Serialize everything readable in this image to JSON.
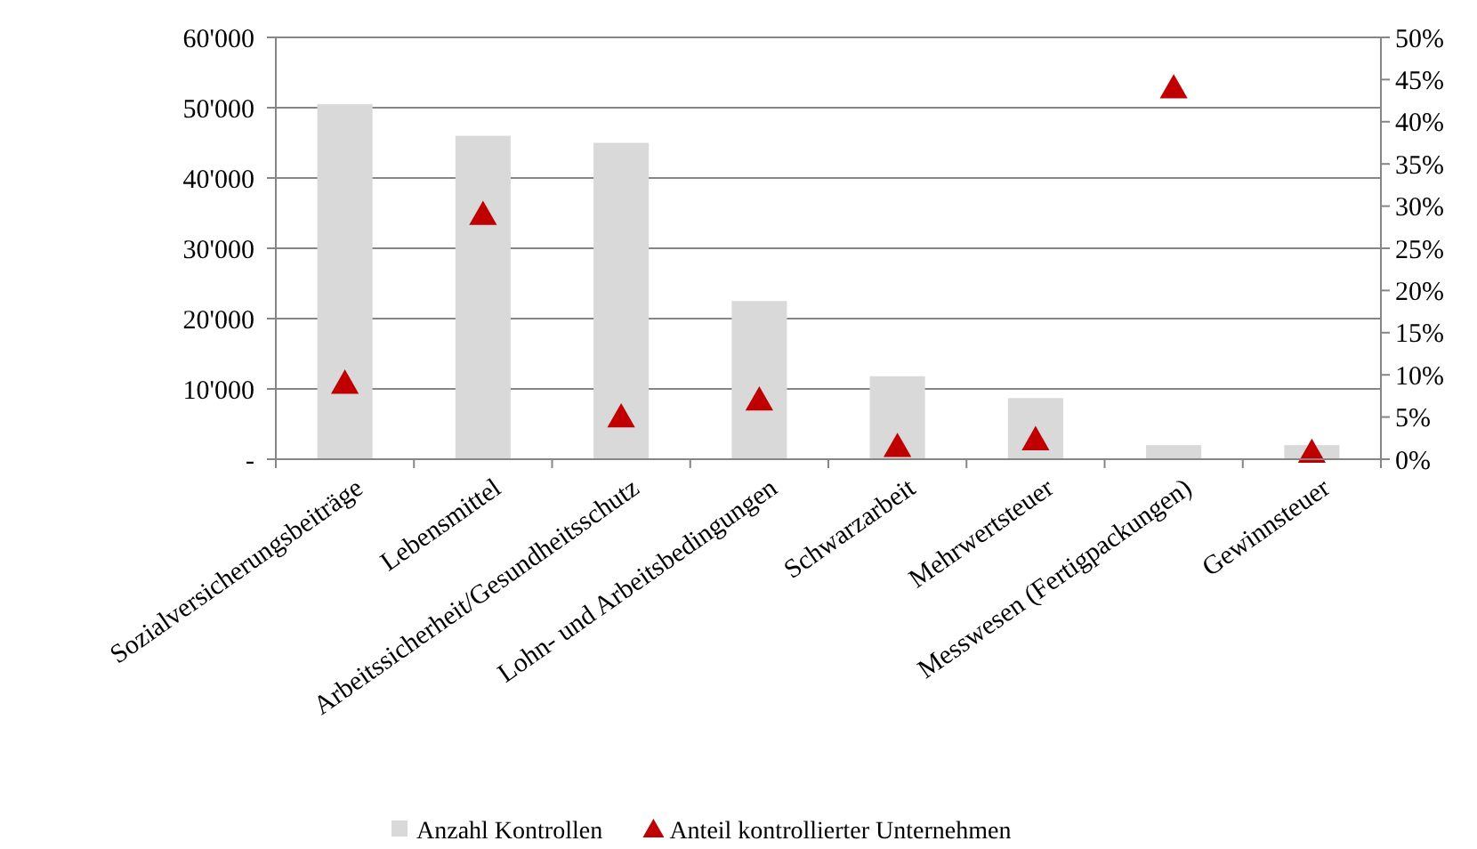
{
  "chart_data": {
    "type": "bar",
    "categories": [
      "Sozialversicherungsbeiträge",
      "Lebensmittel",
      "Arbeitssicherheit/Gesundheitsschutz",
      "Lohn- und Arbeitsbedingungen",
      "Schwarzarbeit",
      "Mehrwertsteuer",
      "Messwesen (Fertigpackungen)",
      "Gewinnsteuer"
    ],
    "series": [
      {
        "name": "Anzahl Kontrollen",
        "color": "#d9d9d9",
        "values": [
          50500,
          46000,
          45000,
          22500,
          11800,
          8700,
          2000,
          2000
        ]
      },
      {
        "name": "Anteil kontrollierter Unternehmen",
        "type": "scatter",
        "axis": "y2",
        "marker": "triangle",
        "color": "#c00000",
        "values": [
          9,
          29,
          5,
          7,
          1.5,
          2.3,
          44,
          0.8
        ]
      }
    ],
    "ylim": [
      0,
      60000
    ],
    "yticks": [
      {
        "value": 0,
        "label": "-"
      },
      {
        "value": 10000,
        "label": "10'000"
      },
      {
        "value": 20000,
        "label": "20'000"
      },
      {
        "value": 30000,
        "label": "30'000"
      },
      {
        "value": 40000,
        "label": "40'000"
      },
      {
        "value": 50000,
        "label": "50'000"
      },
      {
        "value": 60000,
        "label": "60'000"
      }
    ],
    "y2lim": [
      0,
      50
    ],
    "y2ticks": [
      {
        "value": 0,
        "label": "0%"
      },
      {
        "value": 5,
        "label": "5%"
      },
      {
        "value": 10,
        "label": "10%"
      },
      {
        "value": 15,
        "label": "15%"
      },
      {
        "value": 20,
        "label": "20%"
      },
      {
        "value": 25,
        "label": "25%"
      },
      {
        "value": 30,
        "label": "30%"
      },
      {
        "value": 35,
        "label": "35%"
      },
      {
        "value": 40,
        "label": "40%"
      },
      {
        "value": 45,
        "label": "45%"
      },
      {
        "value": 50,
        "label": "50%"
      }
    ],
    "grid": "y",
    "legend": "bottom"
  }
}
